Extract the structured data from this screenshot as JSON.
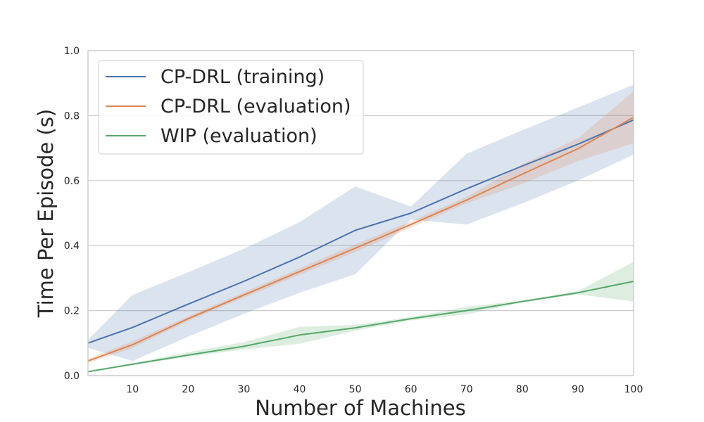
{
  "chart_data": {
    "type": "line",
    "title": "",
    "xlabel": "Number of Machines",
    "ylabel": "Time Per Episode (s)",
    "xlim": [
      2,
      100
    ],
    "ylim": [
      0.0,
      1.0
    ],
    "x": [
      2,
      10,
      20,
      30,
      40,
      50,
      60,
      70,
      80,
      90,
      100
    ],
    "xticks": [
      10,
      20,
      30,
      40,
      50,
      60,
      70,
      80,
      90,
      100
    ],
    "xtick_labels": [
      "10",
      "20",
      "30",
      "40",
      "50",
      "60",
      "70",
      "80",
      "90",
      "100"
    ],
    "yticks": [
      0.0,
      0.2,
      0.4,
      0.6,
      0.8,
      1.0
    ],
    "ytick_labels": [
      "0.0",
      "0.2",
      "0.4",
      "0.6",
      "0.8",
      "1.0"
    ],
    "grid": true,
    "legend_position": "top-left",
    "series": [
      {
        "name": "CP-DRL (training)",
        "color": "#4c72b0",
        "values": [
          0.1,
          0.148,
          0.22,
          0.29,
          0.365,
          0.447,
          0.5,
          0.575,
          0.645,
          0.712,
          0.787
        ],
        "lower": [
          0.085,
          0.045,
          0.12,
          0.19,
          0.255,
          0.312,
          0.48,
          0.465,
          0.53,
          0.6,
          0.68
        ],
        "upper": [
          0.11,
          0.248,
          0.318,
          0.39,
          0.472,
          0.582,
          0.52,
          0.683,
          0.755,
          0.825,
          0.895
        ]
      },
      {
        "name": "CP-DRL (evaluation)",
        "color": "#dd8452",
        "values": [
          0.045,
          0.095,
          0.175,
          0.248,
          0.32,
          0.392,
          0.465,
          0.54,
          0.62,
          0.698,
          0.795
        ],
        "lower": [
          0.038,
          0.085,
          0.168,
          0.24,
          0.31,
          0.38,
          0.455,
          0.53,
          0.59,
          0.66,
          0.715
        ],
        "upper": [
          0.052,
          0.105,
          0.182,
          0.256,
          0.33,
          0.404,
          0.475,
          0.55,
          0.65,
          0.73,
          0.875
        ]
      },
      {
        "name": "WIP (evaluation)",
        "color": "#55a868",
        "values": [
          0.012,
          0.035,
          0.063,
          0.09,
          0.125,
          0.147,
          0.175,
          0.2,
          0.228,
          0.255,
          0.29
        ],
        "lower": [
          0.01,
          0.032,
          0.058,
          0.08,
          0.098,
          0.138,
          0.17,
          0.188,
          0.225,
          0.25,
          0.228
        ],
        "upper": [
          0.014,
          0.038,
          0.072,
          0.103,
          0.15,
          0.156,
          0.18,
          0.212,
          0.231,
          0.26,
          0.35
        ]
      }
    ]
  }
}
